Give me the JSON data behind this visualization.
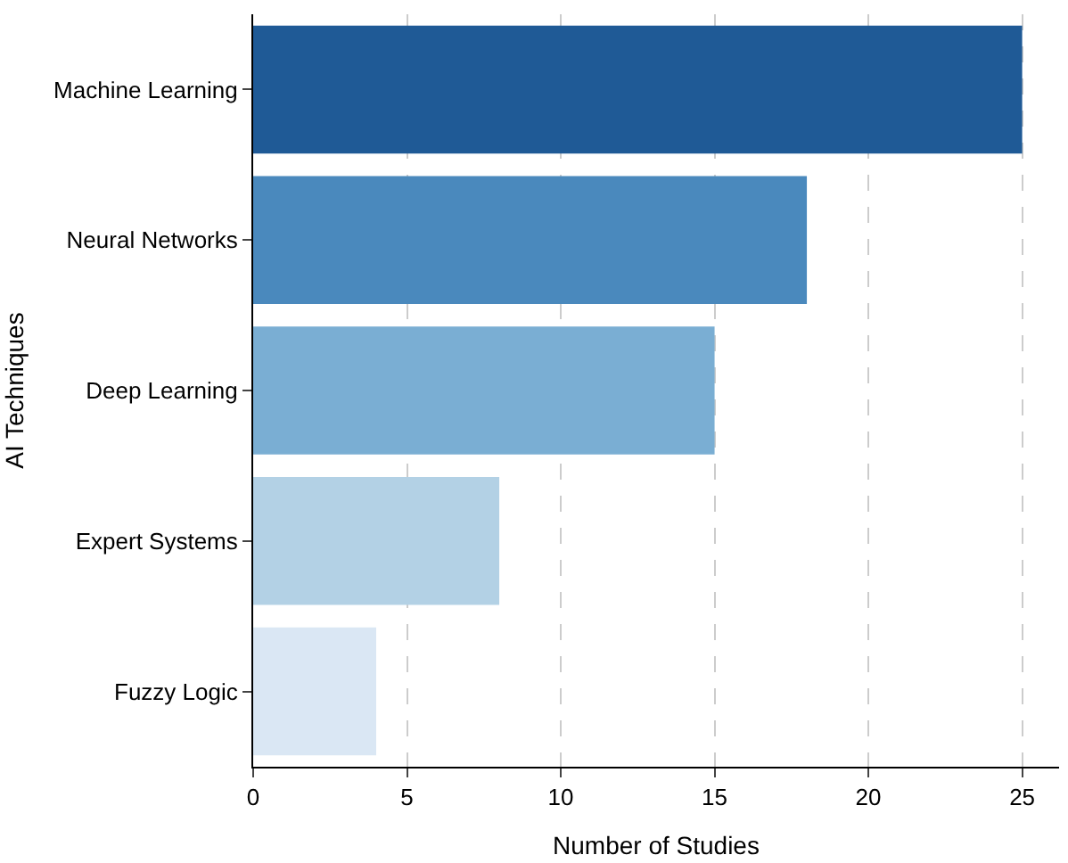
{
  "chart_data": {
    "type": "bar",
    "orientation": "horizontal",
    "xlabel": "Number of Studies",
    "ylabel": "AI Techniques",
    "categories": [
      "Machine Learning",
      "Neural Networks",
      "Deep Learning",
      "Expert Systems",
      "Fuzzy Logic"
    ],
    "values": [
      25,
      18,
      15,
      8,
      4
    ],
    "colors": [
      "#1f5a96",
      "#4a89bd",
      "#7aaed3",
      "#b3d1e5",
      "#dae7f4"
    ],
    "xlim": [
      0,
      26.2
    ],
    "xticks": [
      0,
      5,
      10,
      15,
      20,
      25
    ],
    "grid": "x"
  }
}
